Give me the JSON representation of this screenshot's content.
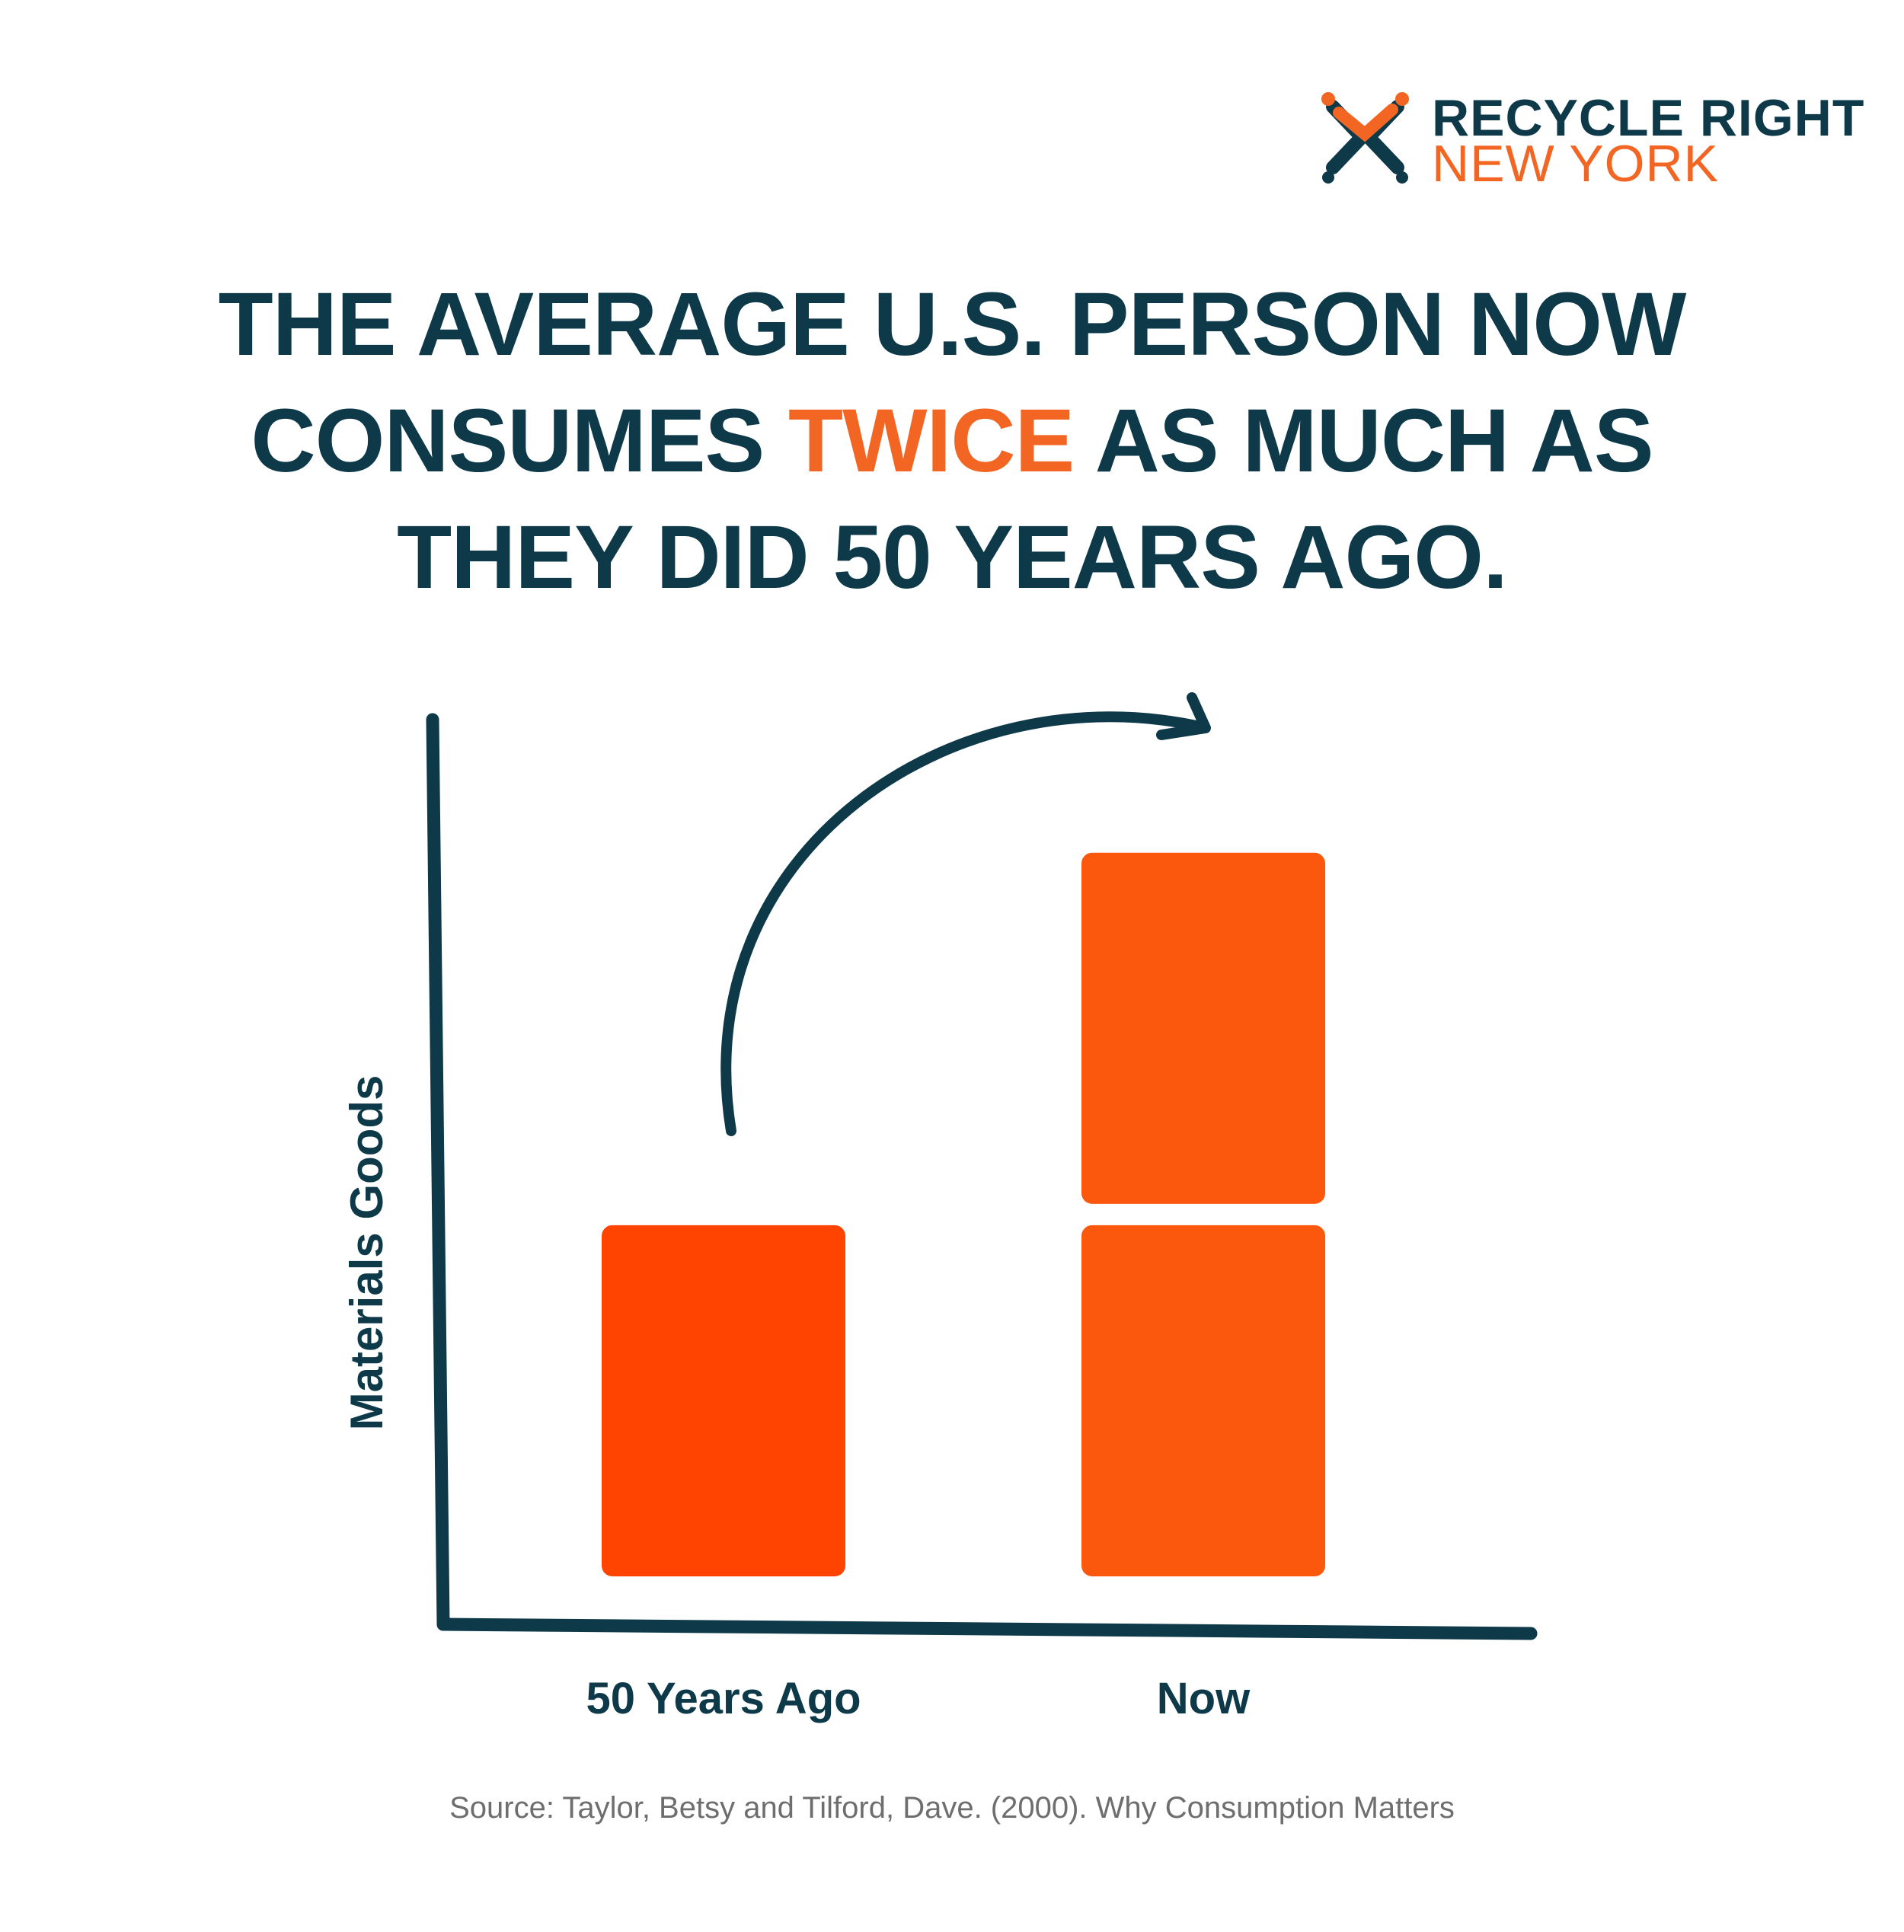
{
  "logo": {
    "line1": "RECYCLE RIGHT",
    "line2": "NEW YORK",
    "icon": "recycle-people-icon",
    "colors": {
      "navy": "#0d3949",
      "orange": "#f26522"
    }
  },
  "headline": {
    "part1": "THE AVERAGE U.S. PERSON NOW",
    "part2_before": "CONSUMES ",
    "highlight": "TWICE",
    "part2_after": " AS MUCH AS",
    "part3": "THEY DID 50 YEARS AGO."
  },
  "chart_data": {
    "type": "bar",
    "categories": [
      "50 Years Ago",
      "Now"
    ],
    "values": [
      1,
      2
    ],
    "value_note": "stacked blocks: 1 unit vs 2 units",
    "ylabel": "Materials Goods",
    "xlabel": "",
    "ylim": [
      0,
      2.3
    ],
    "grid": false,
    "legend": "none",
    "colors": {
      "bar_past": "#ff4300",
      "bar_now": "#fb580e",
      "axis": "#0d3949"
    },
    "annotation": "curved-arrow-from-past-to-now"
  },
  "source": "Source: Taylor, Betsy and Tilford, Dave. (2000). Why Consumption Matters"
}
